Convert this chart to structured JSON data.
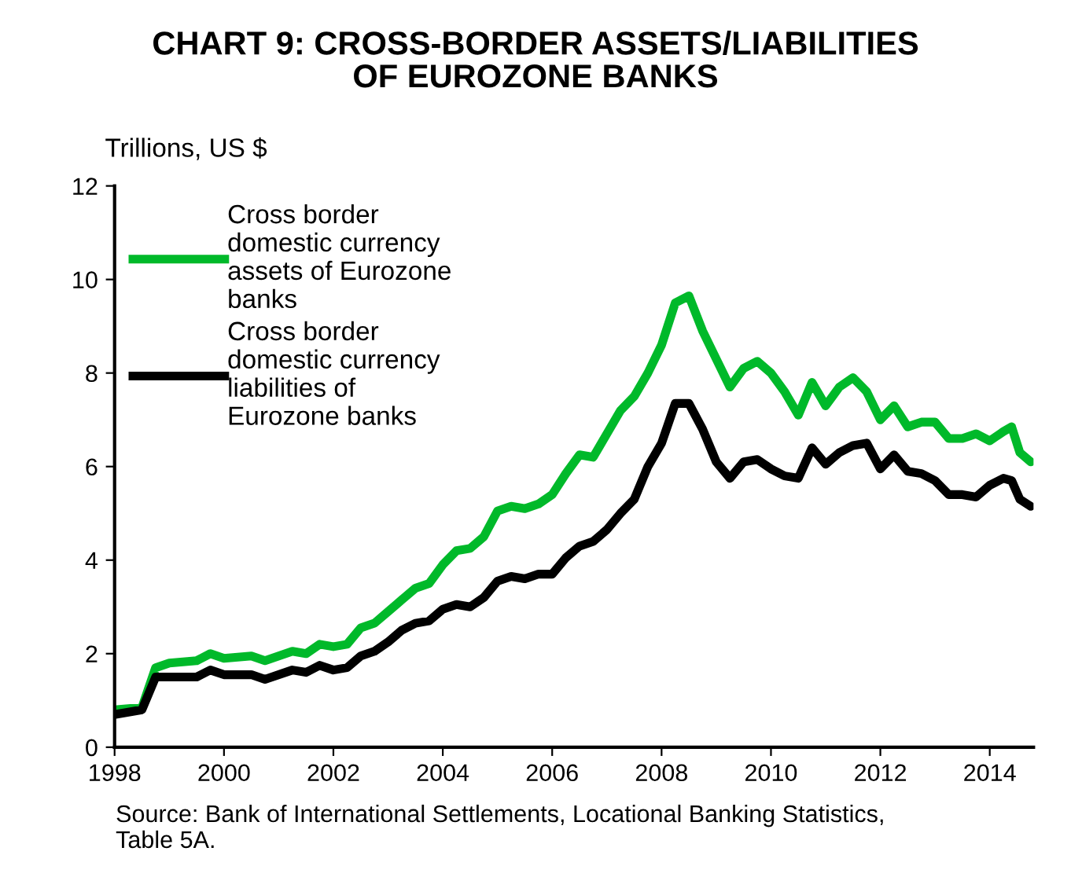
{
  "chart_data": {
    "type": "line",
    "title": "CHART 9: CROSS-BORDER ASSETS/LIABILITIES\nOF EUROZONE BANKS",
    "ylabel": "Trillions, US $",
    "annotations": [
      "Source: Bank of International Settlements, Locational Banking Statistics,\nTable 5A."
    ],
    "x": [
      1998.0,
      1998.5,
      1998.75,
      1999.0,
      1999.5,
      1999.75,
      2000.0,
      2000.5,
      2000.75,
      2001.25,
      2001.5,
      2001.75,
      2002.0,
      2002.25,
      2002.5,
      2002.75,
      2003.0,
      2003.25,
      2003.5,
      2003.75,
      2004.0,
      2004.25,
      2004.5,
      2004.75,
      2005.0,
      2005.25,
      2005.5,
      2005.75,
      2006.0,
      2006.25,
      2006.5,
      2006.75,
      2007.0,
      2007.25,
      2007.5,
      2007.75,
      2008.0,
      2008.25,
      2008.5,
      2008.75,
      2009.0,
      2009.25,
      2009.5,
      2009.75,
      2010.0,
      2010.25,
      2010.5,
      2010.75,
      2011.0,
      2011.25,
      2011.5,
      2011.75,
      2012.0,
      2012.25,
      2012.5,
      2012.75,
      2013.0,
      2013.25,
      2013.5,
      2013.75,
      2014.0,
      2014.25,
      2014.4,
      2014.55,
      2014.75
    ],
    "series": [
      {
        "name": "Cross border\ndomestic currency\nassets of Eurozone\nbanks",
        "color": "#00b92a",
        "values": [
          0.8,
          0.85,
          1.7,
          1.8,
          1.85,
          2.0,
          1.9,
          1.95,
          1.85,
          2.05,
          2.0,
          2.2,
          2.15,
          2.2,
          2.55,
          2.65,
          2.9,
          3.15,
          3.4,
          3.5,
          3.9,
          4.2,
          4.25,
          4.5,
          5.05,
          5.15,
          5.1,
          5.2,
          5.4,
          5.85,
          6.25,
          6.2,
          6.7,
          7.2,
          7.5,
          8.0,
          8.6,
          9.5,
          9.65,
          8.9,
          8.3,
          7.7,
          8.1,
          8.25,
          8.0,
          7.6,
          7.1,
          7.8,
          7.3,
          7.7,
          7.9,
          7.6,
          7.0,
          7.3,
          6.85,
          6.95,
          6.95,
          6.6,
          6.6,
          6.7,
          6.55,
          6.75,
          6.85,
          6.3,
          6.1
        ]
      },
      {
        "name": "Cross border\ndomestic currency\nliabilities of\nEurozone banks",
        "color": "#000000",
        "values": [
          0.7,
          0.8,
          1.5,
          1.5,
          1.5,
          1.65,
          1.55,
          1.55,
          1.45,
          1.65,
          1.6,
          1.75,
          1.65,
          1.7,
          1.95,
          2.05,
          2.25,
          2.5,
          2.65,
          2.7,
          2.95,
          3.05,
          3.0,
          3.2,
          3.55,
          3.65,
          3.6,
          3.7,
          3.7,
          4.05,
          4.3,
          4.4,
          4.65,
          5.0,
          5.3,
          6.0,
          6.5,
          7.35,
          7.35,
          6.8,
          6.1,
          5.75,
          6.1,
          6.15,
          5.95,
          5.8,
          5.75,
          6.4,
          6.05,
          6.3,
          6.45,
          6.5,
          5.95,
          6.25,
          5.9,
          5.85,
          5.7,
          5.4,
          5.4,
          5.35,
          5.6,
          5.75,
          5.7,
          5.3,
          5.15
        ]
      }
    ],
    "xlim": [
      1998,
      2014.8
    ],
    "xticks": [
      1998,
      2000,
      2002,
      2004,
      2006,
      2008,
      2010,
      2012,
      2014
    ],
    "ylim": [
      0,
      12
    ],
    "yticks": [
      0,
      2,
      4,
      6,
      8,
      10,
      12
    ],
    "grid": false,
    "legend": "top left",
    "line_style": "solid",
    "marker": "none"
  }
}
